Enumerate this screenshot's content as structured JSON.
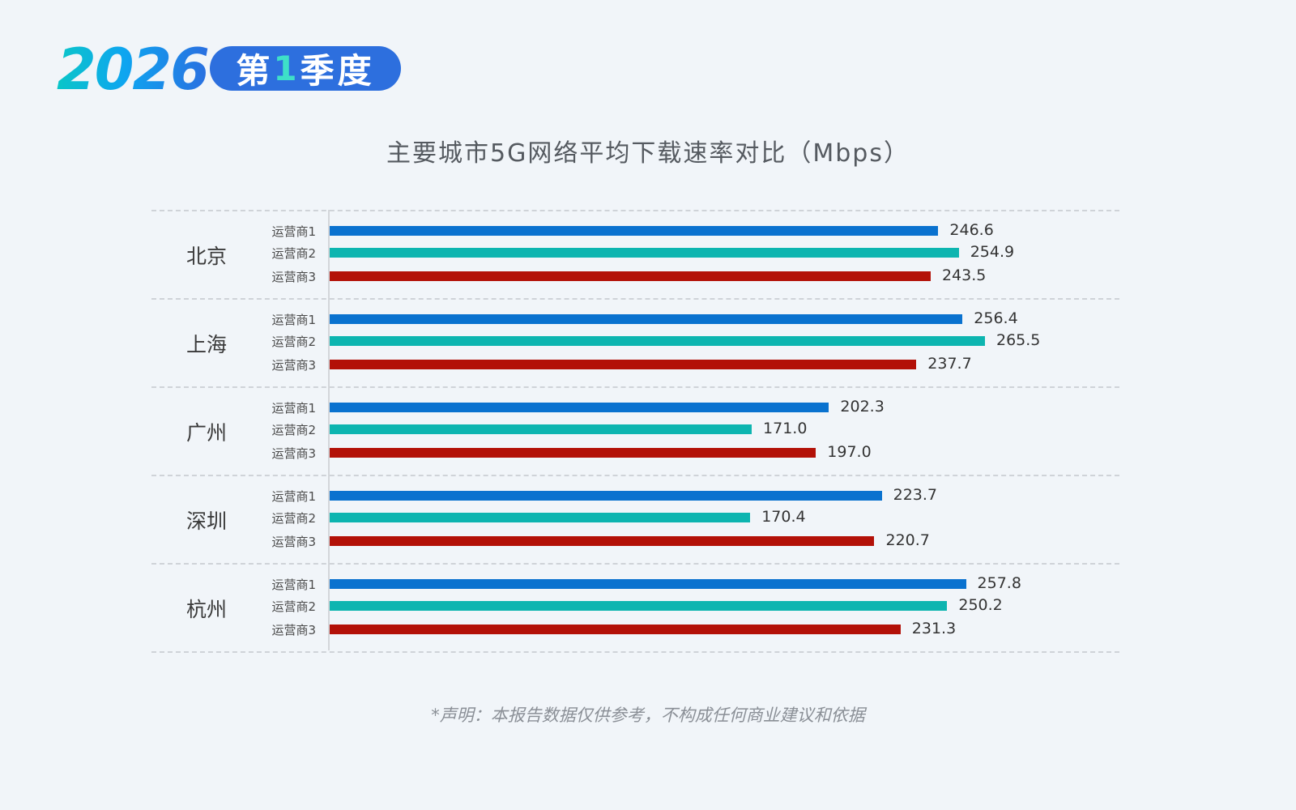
{
  "header": {
    "year": "2026",
    "quarter_prefix": "第",
    "quarter_num": "1",
    "quarter_suffix": "季度"
  },
  "footer": {
    "disclaimer": "*声明：本报告数据仅供参考，不构成任何商业建议和依据"
  },
  "colors": {
    "operator1": "#0a72cf",
    "operator2": "#0db5b0",
    "operator3": "#b31108",
    "background": "#f1f5f9",
    "quarter_badge": "#2d6fde"
  },
  "chart_data": {
    "type": "bar",
    "orientation": "horizontal",
    "title": "主要城市5G网络平均下载速率对比（Mbps）",
    "xlabel": "",
    "ylabel": "",
    "categories": [
      "北京",
      "上海",
      "广州",
      "深圳",
      "杭州"
    ],
    "series": [
      {
        "name": "运营商1",
        "color": "#0a72cf",
        "values": [
          246.6,
          256.4,
          202.3,
          223.7,
          257.8
        ]
      },
      {
        "name": "运营商2",
        "color": "#0db5b0",
        "values": [
          254.9,
          265.5,
          171.0,
          170.4,
          250.2
        ]
      },
      {
        "name": "运营商3",
        "color": "#b31108",
        "values": [
          243.5,
          237.7,
          197.0,
          220.7,
          231.3
        ]
      }
    ],
    "xlim": [
      0,
      265.5
    ],
    "grid": "dashed horizontal separators between city groups",
    "legend": "inline operator labels per group",
    "data_labels": true
  }
}
